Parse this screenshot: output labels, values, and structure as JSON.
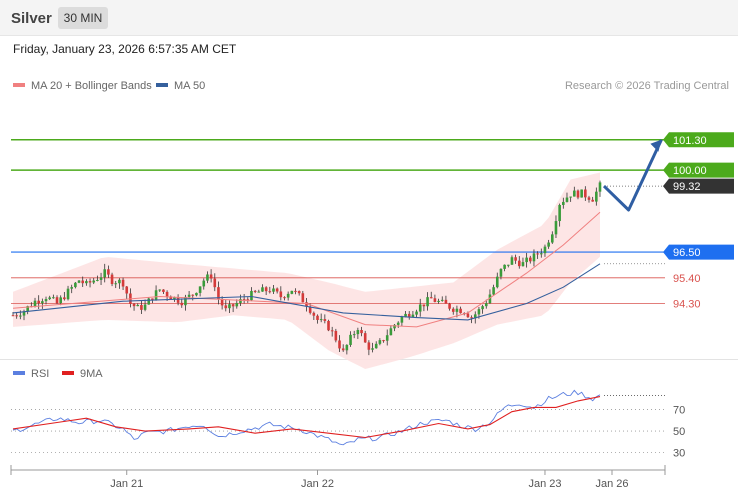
{
  "header": {
    "instrument": "Silver",
    "timeframe": "30 MIN",
    "datetime": "Friday, January 23, 2026 6:57:35 AM CET"
  },
  "legend": {
    "ma20_label": "MA 20 + Bollinger Bands",
    "ma50_label": "MA 50",
    "research": "Research © 2026 Trading Central",
    "rsi_label": "RSI",
    "ma9_label": "9MA"
  },
  "colors": {
    "ma20": "#f08080",
    "ma50": "#35609d",
    "band_fill": "#fde0e0",
    "bull": "#3a9b3a",
    "bear": "#d43a3a",
    "target_green": "#4caa1c",
    "pivot_blue": "#1e6ff0",
    "support_red": "#d9534f",
    "last_price": "#333333",
    "rsi": "#5b7fe0",
    "rsi_ma": "#e02020",
    "arrow": "#2f5ea3"
  },
  "chart_data": [
    {
      "type": "candlestick",
      "title": "Silver 30 MIN",
      "x_labels": [
        "Jan 21",
        "Jan 22",
        "Jan 23",
        "Jan 26"
      ],
      "ylim": [
        92.1,
        103.0
      ],
      "levels": [
        {
          "value": 101.3,
          "label": "101.30",
          "kind": "resistance"
        },
        {
          "value": 100.0,
          "label": "100.00",
          "kind": "resistance"
        },
        {
          "value": 99.32,
          "label": "99.32",
          "kind": "last_price"
        },
        {
          "value": 96.5,
          "label": "96.50",
          "kind": "pivot"
        },
        {
          "value": 95.4,
          "label": "95.40",
          "kind": "support"
        },
        {
          "value": 94.3,
          "label": "94.30",
          "kind": "support"
        }
      ],
      "close_path": [
        [
          0,
          93.8
        ],
        [
          3,
          94.0
        ],
        [
          6,
          94.4
        ],
        [
          9,
          94.6
        ],
        [
          12,
          94.3
        ],
        [
          15,
          94.8
        ],
        [
          18,
          95.3
        ],
        [
          20,
          95.1
        ],
        [
          23,
          95.4
        ],
        [
          25,
          95.6
        ],
        [
          27,
          95.3
        ],
        [
          30,
          95.2
        ],
        [
          32,
          94.3
        ],
        [
          34,
          94.1
        ],
        [
          36,
          94.2
        ],
        [
          38,
          94.6
        ],
        [
          40,
          94.9
        ],
        [
          43,
          94.6
        ],
        [
          46,
          94.4
        ],
        [
          49,
          94.7
        ],
        [
          52,
          95.3
        ],
        [
          54,
          95.5
        ],
        [
          56,
          94.5
        ],
        [
          58,
          94.0
        ],
        [
          61,
          94.3
        ],
        [
          64,
          94.6
        ],
        [
          67,
          94.8
        ],
        [
          70,
          94.9
        ],
        [
          73,
          94.6
        ],
        [
          76,
          94.9
        ],
        [
          80,
          94.3
        ],
        [
          83,
          93.6
        ],
        [
          86,
          93.3
        ],
        [
          88,
          92.8
        ],
        [
          90,
          92.2
        ],
        [
          92,
          92.8
        ],
        [
          94,
          93.3
        ],
        [
          96,
          92.6
        ],
        [
          98,
          92.3
        ],
        [
          100,
          92.6
        ],
        [
          102,
          93.0
        ],
        [
          104,
          93.4
        ],
        [
          106,
          93.7
        ],
        [
          108,
          93.9
        ],
        [
          110,
          94.1
        ],
        [
          112,
          94.3
        ],
        [
          114,
          94.5
        ],
        [
          117,
          94.3
        ],
        [
          120,
          94.1
        ],
        [
          123,
          94.0
        ],
        [
          125,
          93.7
        ],
        [
          127,
          94.0
        ],
        [
          129,
          94.4
        ],
        [
          131,
          95.0
        ],
        [
          133,
          95.7
        ],
        [
          136,
          96.2
        ],
        [
          139,
          96.0
        ],
        [
          142,
          96.3
        ],
        [
          145,
          96.7
        ],
        [
          147,
          97.4
        ],
        [
          149,
          98.6
        ],
        [
          152,
          99.0
        ],
        [
          155,
          99.0
        ],
        [
          158,
          98.8
        ],
        [
          160,
          99.32
        ]
      ],
      "ma20": [
        [
          0,
          94.1
        ],
        [
          40,
          94.6
        ],
        [
          80,
          94.3
        ],
        [
          96,
          93.4
        ],
        [
          110,
          93.3
        ],
        [
          124,
          93.9
        ],
        [
          140,
          95.6
        ],
        [
          150,
          96.8
        ],
        [
          160,
          98.2
        ]
      ],
      "ma50": [
        [
          0,
          93.9
        ],
        [
          30,
          94.4
        ],
        [
          65,
          94.6
        ],
        [
          90,
          93.9
        ],
        [
          110,
          93.7
        ],
        [
          124,
          93.6
        ],
        [
          140,
          94.3
        ],
        [
          150,
          95.0
        ],
        [
          160,
          96.0
        ]
      ],
      "bb_upper": [
        [
          0,
          94.8
        ],
        [
          25,
          96.3
        ],
        [
          45,
          96.0
        ],
        [
          60,
          95.8
        ],
        [
          75,
          95.6
        ],
        [
          86,
          95.2
        ],
        [
          96,
          94.8
        ],
        [
          108,
          95.0
        ],
        [
          120,
          95.2
        ],
        [
          132,
          96.6
        ],
        [
          145,
          97.7
        ],
        [
          152,
          99.6
        ],
        [
          160,
          99.9
        ]
      ],
      "bb_lower": [
        [
          0,
          93.3
        ],
        [
          25,
          93.6
        ],
        [
          45,
          93.5
        ],
        [
          60,
          93.8
        ],
        [
          75,
          93.6
        ],
        [
          86,
          92.3
        ],
        [
          96,
          91.5
        ],
        [
          108,
          92.0
        ],
        [
          120,
          92.6
        ],
        [
          132,
          93.4
        ],
        [
          145,
          93.8
        ],
        [
          152,
          95.2
        ],
        [
          160,
          96.3
        ]
      ],
      "forecast": [
        [
          0,
          99.32
        ],
        [
          6,
          98.3
        ],
        [
          14,
          101.3
        ]
      ]
    },
    {
      "type": "line",
      "title": "RSI",
      "ylim": [
        25,
        90
      ],
      "yticks": [
        70,
        50,
        30
      ],
      "series": [
        {
          "name": "RSI",
          "values": [
            [
              0,
              50
            ],
            [
              6,
              56
            ],
            [
              12,
              62
            ],
            [
              18,
              58
            ],
            [
              24,
              60
            ],
            [
              30,
              52
            ],
            [
              33,
              42
            ],
            [
              36,
              48
            ],
            [
              42,
              50
            ],
            [
              48,
              55
            ],
            [
              52,
              56
            ],
            [
              56,
              45
            ],
            [
              62,
              50
            ],
            [
              70,
              56
            ],
            [
              78,
              52
            ],
            [
              86,
              42
            ],
            [
              90,
              36
            ],
            [
              94,
              42
            ],
            [
              100,
              44
            ],
            [
              106,
              50
            ],
            [
              112,
              58
            ],
            [
              118,
              60
            ],
            [
              122,
              55
            ],
            [
              126,
              52
            ],
            [
              130,
              58
            ],
            [
              134,
              72
            ],
            [
              138,
              76
            ],
            [
              142,
              72
            ],
            [
              146,
              80
            ],
            [
              150,
              84
            ],
            [
              154,
              86
            ],
            [
              158,
              80
            ],
            [
              160,
              83
            ]
          ]
        },
        {
          "name": "9MA",
          "values": [
            [
              0,
              52
            ],
            [
              12,
              58
            ],
            [
              20,
              62
            ],
            [
              28,
              54
            ],
            [
              36,
              50
            ],
            [
              48,
              52
            ],
            [
              56,
              54
            ],
            [
              66,
              48
            ],
            [
              76,
              52
            ],
            [
              86,
              48
            ],
            [
              96,
              44
            ],
            [
              106,
              50
            ],
            [
              116,
              57
            ],
            [
              124,
              52
            ],
            [
              130,
              56
            ],
            [
              136,
              68
            ],
            [
              142,
              72
            ],
            [
              148,
              72
            ],
            [
              154,
              78
            ],
            [
              160,
              82
            ]
          ]
        }
      ]
    }
  ]
}
